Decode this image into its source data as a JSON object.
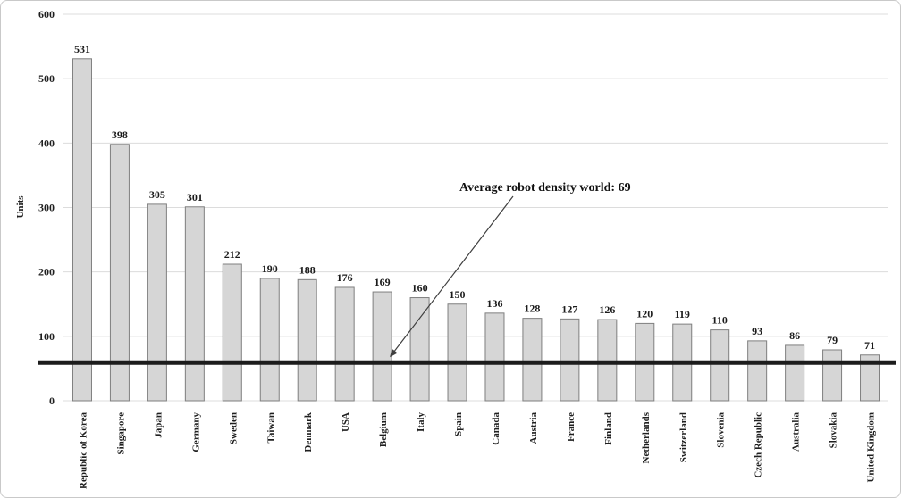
{
  "chart_data": {
    "type": "bar",
    "title": "",
    "ylabel": "Units",
    "xlabel": "",
    "categories": [
      "Republic of Korea",
      "Singapore",
      "Japan",
      "Germany",
      "Sweden",
      "Taiwan",
      "Denmark",
      "USA",
      "Belgium",
      "Italy",
      "Spain",
      "Canada",
      "Austria",
      "France",
      "Finland",
      "Netherlands",
      "Switzerland",
      "Slovenia",
      "Czech Republic",
      "Australia",
      "Slovakia",
      "United Kingdom"
    ],
    "values": [
      531,
      398,
      305,
      301,
      212,
      190,
      188,
      176,
      169,
      160,
      150,
      136,
      128,
      127,
      126,
      120,
      119,
      110,
      93,
      86,
      79,
      71
    ],
    "ylim": [
      0,
      600
    ],
    "ytick_step": 100,
    "yticks": [
      0,
      100,
      200,
      300,
      400,
      500,
      600
    ],
    "grid": true,
    "legend": "none",
    "annotation": {
      "text": "Average robot density world: 69",
      "value": 69
    },
    "average_line": {
      "value": 69,
      "color": "#1c1c1c"
    },
    "colors": {
      "bar_fill": "#d6d6d6",
      "bar_border": "#7f7f7f",
      "gridline": "#dcdcdc",
      "arrow": "#3f3f3f",
      "text": "#1f1f1f"
    }
  }
}
